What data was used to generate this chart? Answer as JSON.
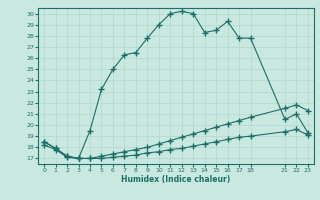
{
  "xlabel": "Humidex (Indice chaleur)",
  "bg_color": "#c8e8e0",
  "line_color": "#1a7068",
  "grid_color": "#b0d8d0",
  "xlim": [
    -0.5,
    23.5
  ],
  "ylim": [
    16.5,
    30.5
  ],
  "xtick_positions": [
    0,
    1,
    2,
    3,
    4,
    5,
    6,
    7,
    8,
    9,
    10,
    11,
    12,
    13,
    14,
    15,
    16,
    17,
    18,
    21,
    22,
    23
  ],
  "xtick_labels": [
    "0",
    "1",
    "2",
    "3",
    "4",
    "5",
    "6",
    "7",
    "8",
    "9",
    "10",
    "11",
    "12",
    "13",
    "14",
    "15",
    "16",
    "17",
    "18",
    "21",
    "22",
    "23"
  ],
  "ytick_positions": [
    17,
    18,
    19,
    20,
    21,
    22,
    23,
    24,
    25,
    26,
    27,
    28,
    29,
    30
  ],
  "ytick_labels": [
    "17",
    "18",
    "19",
    "20",
    "21",
    "22",
    "23",
    "24",
    "25",
    "26",
    "27",
    "28",
    "29",
    "30"
  ],
  "line1_x": [
    0,
    1,
    2,
    3,
    4,
    5,
    6,
    7,
    8,
    9,
    10,
    11,
    12,
    13,
    14,
    15,
    16,
    17,
    18,
    21,
    22,
    23
  ],
  "line1_y": [
    18.2,
    17.8,
    17.1,
    17.0,
    17.0,
    17.0,
    17.1,
    17.2,
    17.3,
    17.5,
    17.6,
    17.8,
    17.9,
    18.1,
    18.3,
    18.5,
    18.7,
    18.9,
    19.0,
    19.4,
    19.6,
    19.1
  ],
  "line2_x": [
    0,
    1,
    2,
    3,
    4,
    5,
    6,
    7,
    8,
    9,
    10,
    11,
    12,
    13,
    14,
    15,
    16,
    17,
    18,
    21,
    22,
    23
  ],
  "line2_y": [
    18.5,
    17.9,
    17.2,
    17.0,
    17.0,
    17.2,
    17.4,
    17.6,
    17.8,
    18.0,
    18.3,
    18.6,
    18.9,
    19.2,
    19.5,
    19.8,
    20.1,
    20.4,
    20.7,
    21.5,
    21.8,
    21.3
  ],
  "line3_x": [
    0,
    1,
    2,
    3,
    4,
    5,
    6,
    7,
    8,
    9,
    10,
    11,
    12,
    13,
    14,
    15,
    16,
    17,
    18,
    21,
    22,
    23
  ],
  "line3_y": [
    18.5,
    17.9,
    17.2,
    17.0,
    19.5,
    23.2,
    25.0,
    26.3,
    26.5,
    27.8,
    29.0,
    30.0,
    30.2,
    30.0,
    28.3,
    28.5,
    29.3,
    27.8,
    27.8,
    20.5,
    21.0,
    19.3
  ]
}
